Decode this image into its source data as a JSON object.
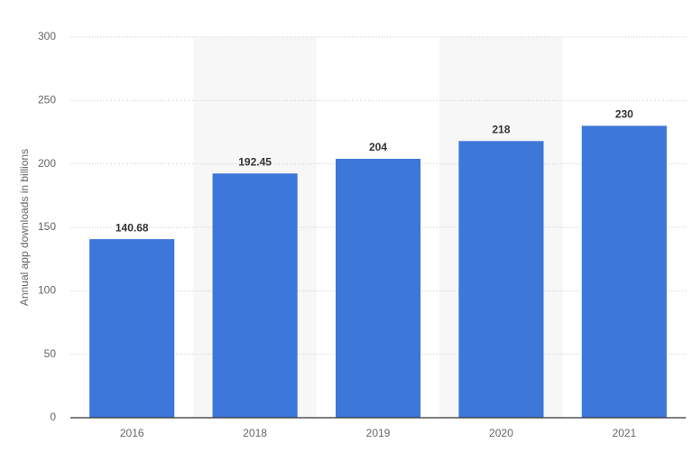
{
  "chart_data": {
    "type": "bar",
    "y_label": "Annual app downloads in billions",
    "categories": [
      "2016",
      "2018",
      "2019",
      "2020",
      "2021"
    ],
    "values": [
      140.68,
      192.45,
      204,
      218,
      230
    ],
    "color": "#3c77d9",
    "ylim": [
      0,
      300
    ],
    "yticks": [
      0,
      50,
      100,
      150,
      200,
      250,
      300
    ],
    "grid": true
  }
}
